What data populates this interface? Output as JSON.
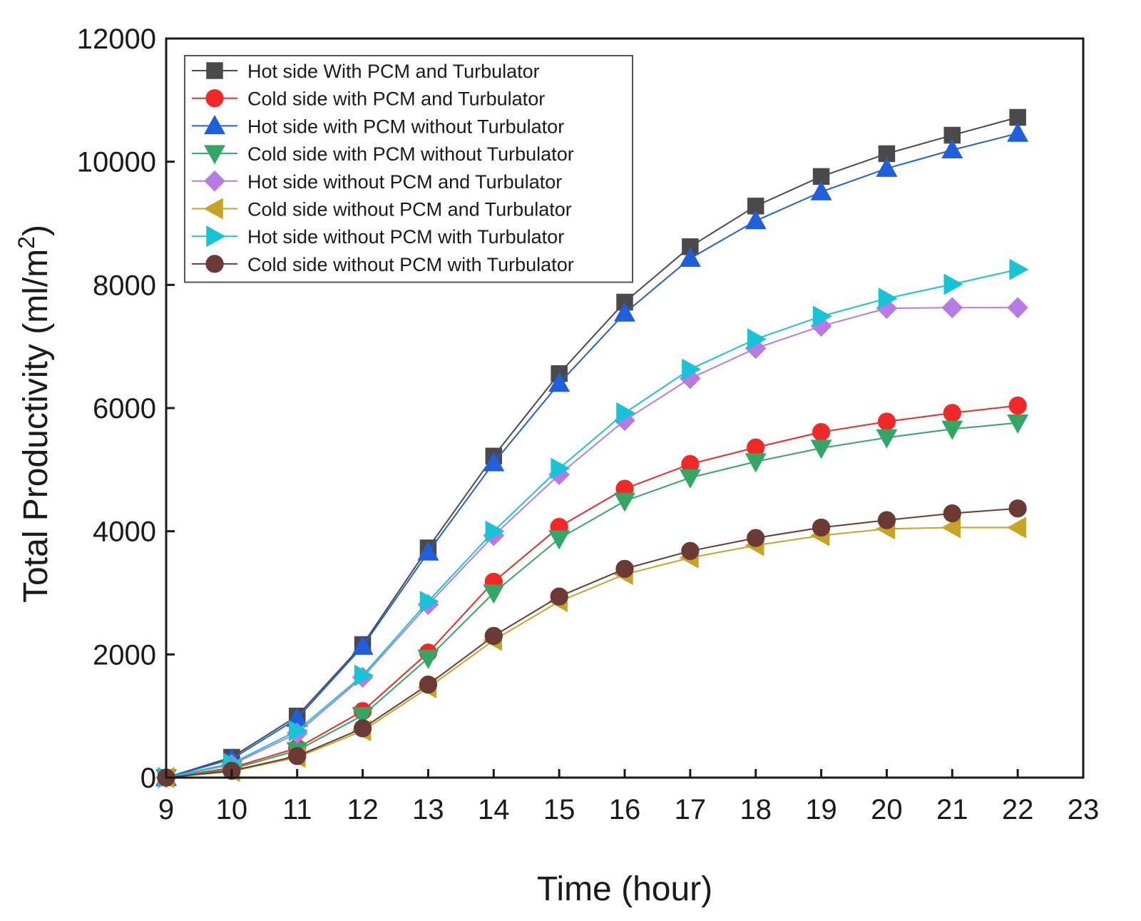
{
  "chart_data": {
    "type": "line",
    "title": "",
    "xlabel": "Time (hour)",
    "ylabel_main": "Total Productivity (ml/m",
    "ylabel_sup": "2",
    "ylabel_close": ")",
    "xlim": [
      9,
      23
    ],
    "ylim": [
      0,
      12000
    ],
    "xticks": [
      9,
      10,
      11,
      12,
      13,
      14,
      15,
      16,
      17,
      18,
      19,
      20,
      21,
      22,
      23
    ],
    "yticks": [
      0,
      2000,
      4000,
      6000,
      8000,
      10000,
      12000
    ],
    "grid": false,
    "legend_position": "top-left",
    "x": [
      9,
      10,
      11,
      12,
      13,
      14,
      15,
      16,
      17,
      18,
      19,
      20,
      21,
      22
    ],
    "series": [
      {
        "name": "Hot side With PCM and Turbulator",
        "color": "#4a4a4a",
        "marker": "square",
        "values": [
          0,
          330,
          1000,
          2160,
          3730,
          5220,
          6560,
          7720,
          8620,
          9280,
          9760,
          10130,
          10430,
          10720
        ]
      },
      {
        "name": "Cold side with PCM and Turbulator",
        "color": "#f02828",
        "marker": "circle",
        "values": [
          0,
          160,
          480,
          1080,
          2030,
          3180,
          4070,
          4690,
          5090,
          5360,
          5610,
          5780,
          5920,
          6040
        ]
      },
      {
        "name": "Hot side with PCM without Turbulator",
        "color": "#1f5fdc",
        "marker": "triangle-up",
        "values": [
          0,
          300,
          960,
          2130,
          3660,
          5110,
          6400,
          7540,
          8430,
          9040,
          9510,
          9890,
          10190,
          10460
        ]
      },
      {
        "name": "Cold side with PCM without Turbulator",
        "color": "#33a666",
        "marker": "triangle-down",
        "values": [
          0,
          140,
          440,
          1010,
          1940,
          3000,
          3880,
          4490,
          4870,
          5130,
          5350,
          5520,
          5660,
          5760
        ]
      },
      {
        "name": "Hot side without PCM and Turbulator",
        "color": "#b77be6",
        "marker": "diamond",
        "values": [
          0,
          210,
          720,
          1630,
          2810,
          3930,
          4920,
          5800,
          6480,
          6970,
          7330,
          7620,
          7630,
          7630
        ]
      },
      {
        "name": "Cold side without PCM and Turbulator",
        "color": "#c7a326",
        "marker": "triangle-left",
        "values": [
          0,
          100,
          330,
          760,
          1460,
          2230,
          2860,
          3300,
          3570,
          3770,
          3930,
          4040,
          4060,
          4060
        ]
      },
      {
        "name": "Hot side without PCM with Turbulator",
        "color": "#17c4d6",
        "marker": "triangle-right",
        "values": [
          0,
          230,
          760,
          1660,
          2860,
          4000,
          5020,
          5920,
          6630,
          7120,
          7490,
          7780,
          8010,
          8250
        ]
      },
      {
        "name": "Cold side without PCM with Turbulator",
        "color": "#6b3a34",
        "marker": "circle",
        "values": [
          0,
          110,
          350,
          800,
          1510,
          2300,
          2940,
          3390,
          3680,
          3890,
          4060,
          4180,
          4290,
          4370
        ]
      }
    ]
  }
}
